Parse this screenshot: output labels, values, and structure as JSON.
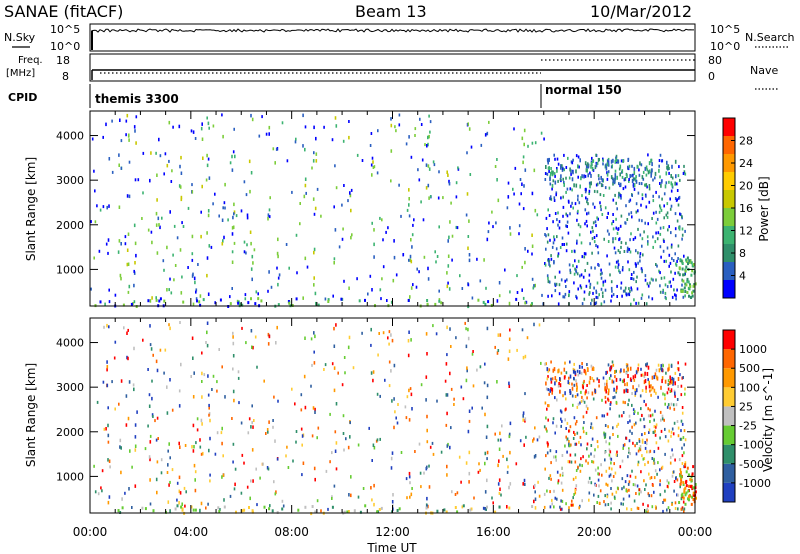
{
  "header": {
    "station": "SANAE (fitACF)",
    "beam": "Beam 13",
    "date": "10/Mar/2012"
  },
  "status_panels": {
    "nsky_label": "N.Sky",
    "nsearch_label": "N.Search",
    "freq_label_1": "Freq.",
    "freq_label_2": "[MHz]",
    "nave_label": "Nave",
    "cpid_label": "CPID",
    "log_top_tick": "10^5",
    "log_bottom_tick": "10^0",
    "freq_ticks": [
      "18",
      "8"
    ],
    "nave_ticks": [
      "80",
      "0"
    ],
    "cpid_modes": [
      {
        "name": "themis 3300",
        "start_hour": 0
      },
      {
        "name": "normal 150",
        "start_hour": 18
      }
    ]
  },
  "chart_data": [
    {
      "type": "heatmap",
      "name": "power",
      "ylabel": "Slant Range [km]",
      "ylim": [
        180,
        4550
      ],
      "y_ticks": [
        "4000",
        "3000",
        "2000",
        "1000"
      ],
      "xlim": [
        0,
        24
      ],
      "colorbar_label": "Power [dB]",
      "colorbar_ticks": [
        "28",
        "24",
        "20",
        "16",
        "12",
        "8",
        "4"
      ],
      "colors": [
        "#0000ff",
        "#2a5fc0",
        "#2f8f6a",
        "#3cb371",
        "#7ccd3a",
        "#c8c800",
        "#ffcc00",
        "#ff9900",
        "#ff6600",
        "#ff0000"
      ]
    },
    {
      "type": "heatmap",
      "name": "velocity",
      "ylabel": "Slant Range [km]",
      "ylim": [
        180,
        4550
      ],
      "y_ticks": [
        "4000",
        "3000",
        "2000",
        "1000"
      ],
      "xlim": [
        0,
        24
      ],
      "x_ticks": [
        "00:00",
        "04:00",
        "08:00",
        "12:00",
        "16:00",
        "20:00",
        "00:00"
      ],
      "xlabel": "Time UT",
      "colorbar_label": "Velocity [m s^-1]",
      "colorbar_ticks": [
        "1000",
        "500",
        "100",
        "25",
        "-25",
        "-100",
        "-500",
        "-1000"
      ],
      "colors": [
        "#2040c0",
        "#2f5fa0",
        "#2f8f6a",
        "#66cc33",
        "#c0c0c0",
        "#ffcc33",
        "#ff9900",
        "#ff6600",
        "#ff0000"
      ]
    }
  ]
}
